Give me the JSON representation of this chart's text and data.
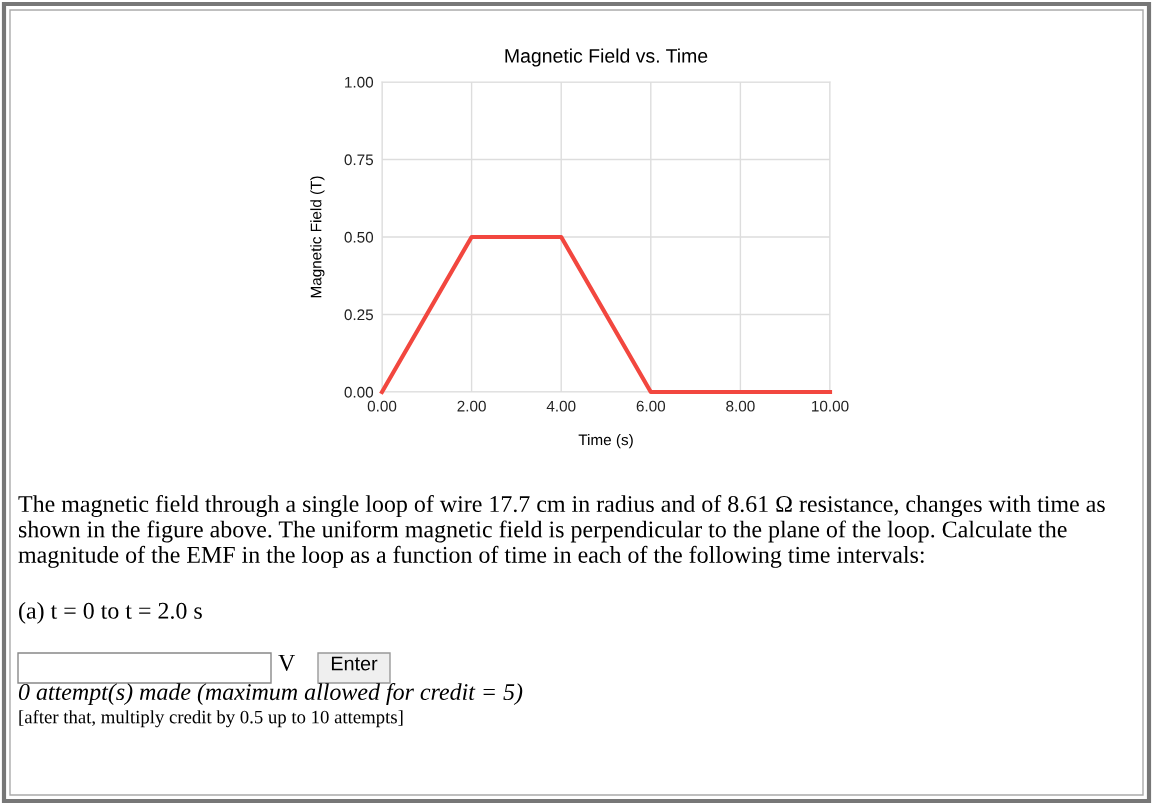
{
  "chart_data": {
    "type": "line",
    "title": "Magnetic Field vs. Time",
    "xlabel": "Time (s)",
    "ylabel": "Magnetic Field (T)",
    "x": [
      0,
      2,
      4,
      6,
      8,
      10
    ],
    "series": [
      {
        "color": "#f2473f",
        "values": [
          0,
          0.5,
          0.5,
          0,
          0,
          0
        ]
      }
    ],
    "xlim": [
      0,
      10
    ],
    "xticks": [
      {
        "value": 0,
        "label": "0.00"
      },
      {
        "value": 2,
        "label": "2.00"
      },
      {
        "value": 4,
        "label": "4.00"
      },
      {
        "value": 6,
        "label": "6.00"
      },
      {
        "value": 8,
        "label": "8.00"
      },
      {
        "value": 10,
        "label": "10.00"
      }
    ],
    "ylim": [
      0,
      1
    ],
    "yticks": [
      {
        "value": 0,
        "label": "0.00"
      },
      {
        "value": 0.25,
        "label": "0.25"
      },
      {
        "value": 0.5,
        "label": "0.50"
      },
      {
        "value": 0.75,
        "label": "0.75"
      },
      {
        "value": 1,
        "label": "1.00"
      }
    ],
    "grid": true,
    "marker": "none",
    "line_style": "solid",
    "annotations": [
      "The magnetic field through a single loop of wire 17.7 cm in radius and of 8.61 Ω resistance, changes with time as shown in the figure above. The uniform magnetic field is perpendicular to the plane of the loop. Calculate the magnitude of the EMF in the loop as a function of time in each of the following time intervals:",
      "(a) t = 0 to t = 2.0 s",
      "V",
      "Enter",
      "0 attempt(s) made (maximum allowed for credit = 5)",
      "[after that, multiply credit by 0.5 up to 10 attempts]"
    ]
  }
}
